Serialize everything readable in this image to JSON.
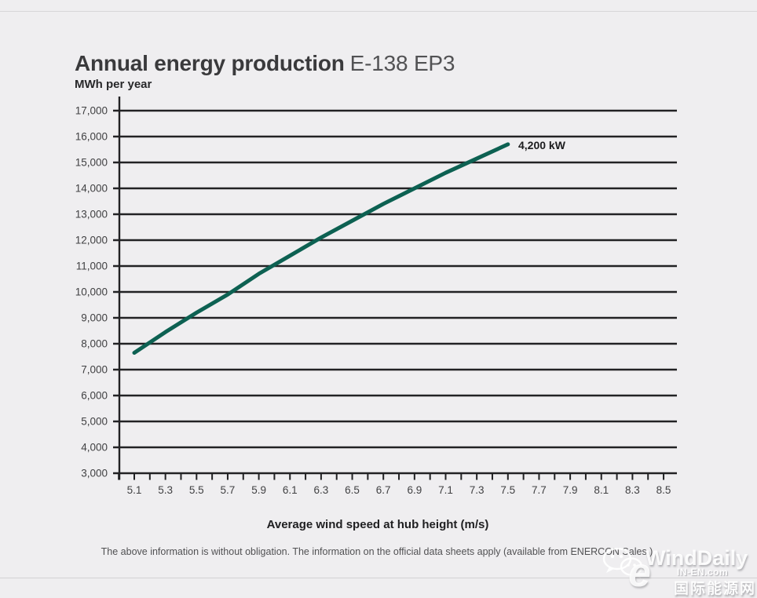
{
  "window": {
    "background": "#efeef0"
  },
  "header": {
    "title_main": "Annual energy production",
    "title_model": "E-138 EP3"
  },
  "chart_data": {
    "type": "line",
    "title": "Annual energy production E-138 EP3",
    "ylabel": "MWh per year",
    "xlabel": "Average wind speed at hub height (m/s)",
    "ylim": [
      3000,
      17000
    ],
    "xlim": [
      5.0,
      8.6
    ],
    "grid": "horizontal",
    "grid_color": "#222224",
    "legend_position": "inline-annotation",
    "yticks": [
      17000,
      16000,
      15000,
      14000,
      13000,
      12000,
      11000,
      10000,
      9000,
      8000,
      7000,
      6000,
      5000,
      4000,
      3000
    ],
    "xticks": [
      5.1,
      5.3,
      5.5,
      5.7,
      5.9,
      6.1,
      6.3,
      6.5,
      6.7,
      6.9,
      7.1,
      7.3,
      7.5,
      7.7,
      7.9,
      8.1,
      8.3,
      8.5
    ],
    "minor_xtick_step": 0.1,
    "series": [
      {
        "name": "4,200 kW",
        "color": "#0d6152",
        "x": [
          5.1,
          5.3,
          5.5,
          5.7,
          5.9,
          6.1,
          6.3,
          6.5,
          6.7,
          6.9,
          7.1,
          7.3,
          7.5
        ],
        "values": [
          7650,
          8450,
          9200,
          9900,
          10700,
          11400,
          12100,
          12750,
          13400,
          14000,
          14600,
          15150,
          15700
        ]
      }
    ]
  },
  "footer": {
    "note": "The above information is without obligation. The information on the official data sheets apply (available from ENERCON Sales.)"
  },
  "watermark": {
    "brand": "WindDaily",
    "site": "IN-EN.com",
    "cn_name": "国际能源网",
    "e_glyph": "e"
  }
}
